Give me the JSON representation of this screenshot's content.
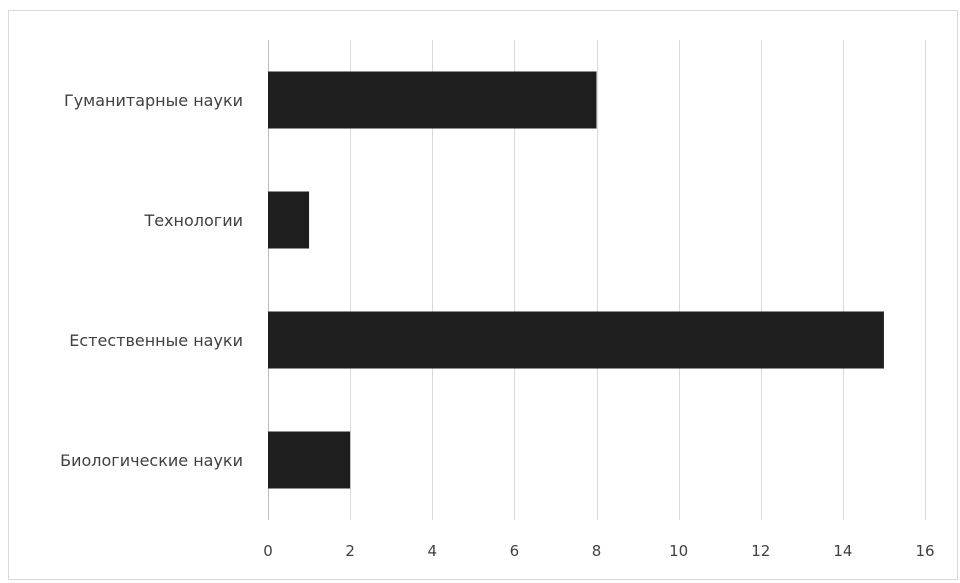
{
  "chart_data": {
    "type": "bar",
    "orientation": "horizontal",
    "title": "",
    "xlabel": "",
    "ylabel": "",
    "categories": [
      "Гуманитарные науки",
      "Технологии",
      "Естественные науки",
      "Биологические науки"
    ],
    "values": [
      8,
      1,
      15,
      2
    ],
    "xlim": [
      0,
      16
    ],
    "x_ticks": [
      0,
      2,
      4,
      6,
      8,
      10,
      12,
      14,
      16
    ],
    "grid": "vertical",
    "legend": "none",
    "bar_color": "#1e1e1e",
    "grid_color": "#d9d9d9"
  }
}
